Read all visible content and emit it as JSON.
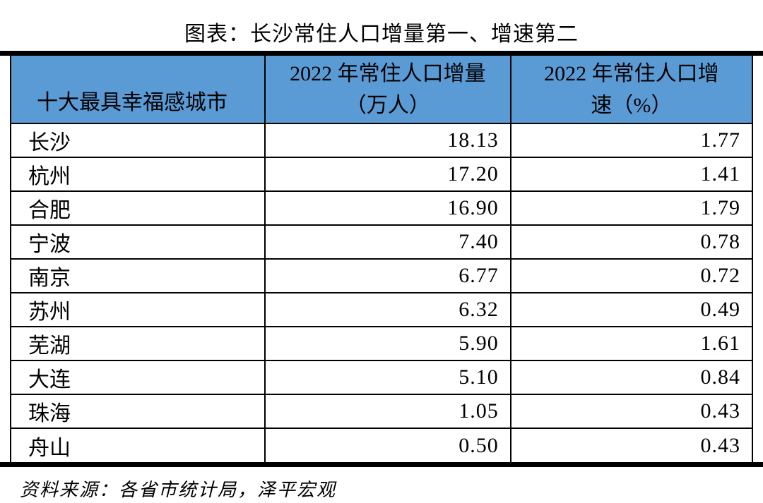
{
  "title": "图表：长沙常住人口增量第一、增速第二",
  "table": {
    "headers": {
      "city": "十大最具幸福感城市",
      "increase_line1": "2022 年常住人口增量",
      "increase_line2": "（万人）",
      "growth_line1": "2022 年常住人口增",
      "growth_line2": "速（%）"
    },
    "rows": [
      {
        "city": "长沙",
        "increase": "18.13",
        "growth": "1.77"
      },
      {
        "city": "杭州",
        "increase": "17.20",
        "growth": "1.41"
      },
      {
        "city": "合肥",
        "increase": "16.90",
        "growth": "1.79"
      },
      {
        "city": "宁波",
        "increase": "7.40",
        "growth": "0.78"
      },
      {
        "city": "南京",
        "increase": "6.77",
        "growth": "0.72"
      },
      {
        "city": "苏州",
        "increase": "6.32",
        "growth": "0.49"
      },
      {
        "city": "芜湖",
        "increase": "5.90",
        "growth": "1.61"
      },
      {
        "city": "大连",
        "increase": "5.10",
        "growth": "0.84"
      },
      {
        "city": "珠海",
        "increase": "1.05",
        "growth": "0.43"
      },
      {
        "city": "舟山",
        "increase": "0.50",
        "growth": "0.43"
      }
    ]
  },
  "footer": {
    "source": "资料来源：各省市统计局，泽平宏观"
  },
  "colors": {
    "header_bg": "#5B9BD5",
    "border": "#000000",
    "text": "#000000",
    "background": "#FFFFFF"
  },
  "chart_data": {
    "type": "table",
    "title": "图表：长沙常住人口增量第一、增速第二",
    "columns": [
      "十大最具幸福感城市",
      "2022 年常住人口增量（万人）",
      "2022 年常住人口增速（%）"
    ],
    "rows": [
      [
        "长沙",
        18.13,
        1.77
      ],
      [
        "杭州",
        17.2,
        1.41
      ],
      [
        "合肥",
        16.9,
        1.79
      ],
      [
        "宁波",
        7.4,
        0.78
      ],
      [
        "南京",
        6.77,
        0.72
      ],
      [
        "苏州",
        6.32,
        0.49
      ],
      [
        "芜湖",
        5.9,
        1.61
      ],
      [
        "大连",
        5.1,
        0.84
      ],
      [
        "珠海",
        1.05,
        0.43
      ],
      [
        "舟山",
        0.5,
        0.43
      ]
    ],
    "source": "资料来源：各省市统计局，泽平宏观",
    "legend_position": "none",
    "notes": "数值列右对齐；表头蓝色底、黑色文字；上下为粗黑横线"
  }
}
